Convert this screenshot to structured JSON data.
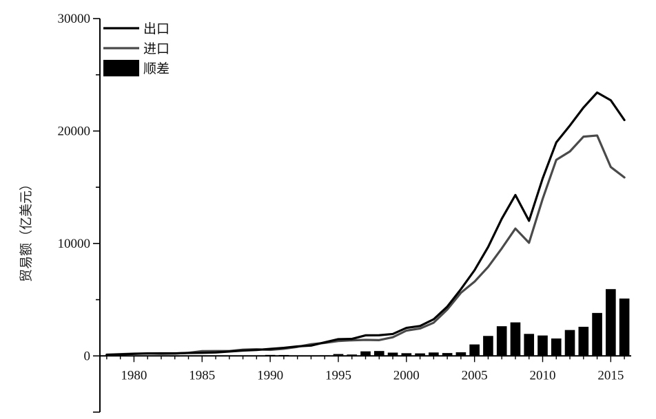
{
  "chart_data": {
    "type": "line",
    "title": "",
    "xlabel": "",
    "ylabel": "贸易额（亿美元）",
    "xlim": [
      1977.5,
      2016.5
    ],
    "ylim": [
      -5000,
      30000
    ],
    "x_ticks": [
      1980,
      1985,
      1990,
      1995,
      2000,
      2005,
      2010,
      2015
    ],
    "y_ticks": [
      0,
      10000,
      20000,
      30000
    ],
    "legend_position": "top-left",
    "grid": false,
    "x": [
      1978,
      1979,
      1980,
      1981,
      1982,
      1983,
      1984,
      1985,
      1986,
      1987,
      1988,
      1989,
      1990,
      1991,
      1992,
      1993,
      1994,
      1995,
      1996,
      1997,
      1998,
      1999,
      2000,
      2001,
      2002,
      2003,
      2004,
      2005,
      2006,
      2007,
      2008,
      2009,
      2010,
      2011,
      2012,
      2013,
      2014,
      2015,
      2016
    ],
    "series": [
      {
        "name": "出口",
        "type": "line",
        "color": "#000000",
        "values": [
          98,
          136,
          181,
          220,
          223,
          222,
          261,
          274,
          309,
          394,
          475,
          525,
          621,
          719,
          849,
          917,
          1210,
          1488,
          1511,
          1828,
          1837,
          1949,
          2492,
          2661,
          3256,
          4382,
          5933,
          7620,
          9689,
          12200,
          14307,
          12016,
          15778,
          18984,
          20487,
          22090,
          23423,
          22735,
          20976
        ]
      },
      {
        "name": "进口",
        "type": "line",
        "color": "#4a4a4a",
        "values": [
          109,
          157,
          200,
          220,
          193,
          214,
          274,
          423,
          429,
          432,
          553,
          591,
          534,
          638,
          806,
          1040,
          1156,
          1321,
          1388,
          1424,
          1402,
          1657,
          2251,
          2436,
          2952,
          4128,
          5612,
          6600,
          7915,
          9561,
          11326,
          10059,
          13962,
          17435,
          18184,
          19500,
          19603,
          16796,
          15874
        ]
      },
      {
        "name": "顺差",
        "type": "bar",
        "color": "#000000",
        "values": [
          0,
          0,
          0,
          0,
          30,
          8,
          0,
          0,
          0,
          0,
          0,
          0,
          87,
          81,
          43,
          0,
          54,
          167,
          122,
          404,
          435,
          292,
          241,
          225,
          304,
          255,
          321,
          1020,
          1775,
          2639,
          2981,
          1957,
          1815,
          1549,
          2303,
          2590,
          3820,
          5939,
          5102
        ]
      }
    ]
  }
}
